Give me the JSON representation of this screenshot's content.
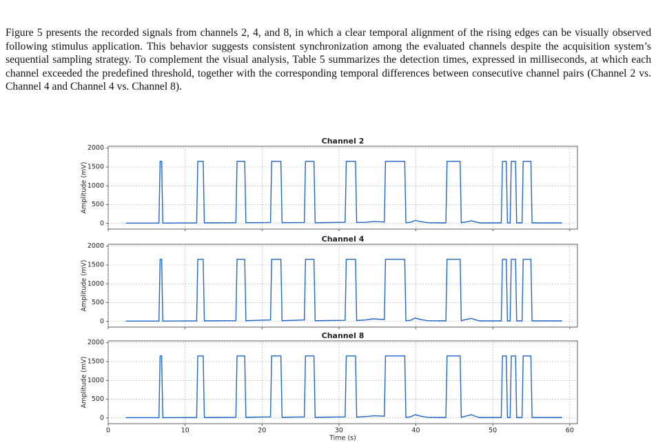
{
  "paragraph": "Figure 5 presents the recorded signals from channels 2, 4, and 8, in which a clear temporal alignment of the rising edges can be visually observed following stimulus application. This behavior suggests consistent synchronization among the evaluated channels despite the acquisition system’s sequential sampling strategy. To complement the visual analysis, Table 5 summarizes the detection times, expressed in milliseconds, at which each channel exceeded the predefined threshold, together with the corresponding temporal differences between consecutive channel pairs (Channel 2 vs. Channel 4 and Channel 4 vs. Channel 8).",
  "figure": {
    "charts": [
      {
        "type": "line",
        "title": "Channel 2",
        "ylabel": "Amplitude (mV)",
        "color": "#1f66c9",
        "grid": true,
        "xlim": [
          0,
          61
        ],
        "ylim": [
          -150,
          2050
        ],
        "xticks": [
          0,
          10,
          20,
          30,
          40,
          50,
          60
        ],
        "yticks": [
          0,
          500,
          1000,
          1500,
          2000
        ],
        "x": [
          2.3,
          6.6,
          6.75,
          6.95,
          7.1,
          11.5,
          11.65,
          12.35,
          12.5,
          16.6,
          16.75,
          17.75,
          17.9,
          21.1,
          21.25,
          22.45,
          22.6,
          25.5,
          25.65,
          26.75,
          26.9,
          30.8,
          30.95,
          32.15,
          32.3,
          33.5,
          34.5,
          35.9,
          36.05,
          38.55,
          38.7,
          39.3,
          39.9,
          40.6,
          41.5,
          43.9,
          44.05,
          45.75,
          45.9,
          46.5,
          47.2,
          47.8,
          48.3,
          51.1,
          51.25,
          51.75,
          51.9,
          52.25,
          52.4,
          52.95,
          53.1,
          53.8,
          53.95,
          54.95,
          55.1,
          59
        ],
        "values": [
          10,
          10,
          1650,
          1650,
          10,
          15,
          1650,
          1650,
          15,
          20,
          1650,
          1650,
          20,
          25,
          1650,
          1650,
          20,
          25,
          1650,
          1650,
          20,
          30,
          1650,
          1650,
          25,
          30,
          50,
          40,
          1650,
          1650,
          20,
          30,
          80,
          50,
          20,
          15,
          1650,
          1650,
          20,
          40,
          70,
          40,
          15,
          15,
          1650,
          1650,
          15,
          15,
          1650,
          1650,
          15,
          15,
          1650,
          1650,
          15,
          15
        ]
      },
      {
        "type": "line",
        "title": "Channel 4",
        "ylabel": "Amplitude (mV)",
        "color": "#1f66c9",
        "grid": true,
        "xlim": [
          0,
          61
        ],
        "ylim": [
          -150,
          2050
        ],
        "xticks": [
          0,
          10,
          20,
          30,
          40,
          50,
          60
        ],
        "yticks": [
          0,
          500,
          1000,
          1500,
          2000
        ],
        "x": [
          2.3,
          6.6,
          6.75,
          6.95,
          7.1,
          11.5,
          11.65,
          12.35,
          12.5,
          16.6,
          16.75,
          17.75,
          17.9,
          21.1,
          21.25,
          22.45,
          22.6,
          25.5,
          25.65,
          26.75,
          26.9,
          30.8,
          30.95,
          32.15,
          32.3,
          33.5,
          34.5,
          35.9,
          36.05,
          38.55,
          38.7,
          39.3,
          39.9,
          40.6,
          41.5,
          43.9,
          44.05,
          45.75,
          45.9,
          46.5,
          47.2,
          47.8,
          48.3,
          51.1,
          51.25,
          51.75,
          51.9,
          52.25,
          52.4,
          52.95,
          53.1,
          53.8,
          53.95,
          54.95,
          55.1,
          59
        ],
        "values": [
          10,
          10,
          1650,
          1650,
          10,
          15,
          1650,
          1650,
          15,
          20,
          1650,
          1650,
          20,
          40,
          1650,
          1650,
          20,
          40,
          1650,
          1650,
          20,
          30,
          1650,
          1650,
          25,
          40,
          70,
          50,
          1650,
          1650,
          20,
          30,
          90,
          50,
          20,
          15,
          1650,
          1650,
          20,
          50,
          80,
          40,
          15,
          15,
          1650,
          1650,
          15,
          15,
          1650,
          1650,
          15,
          15,
          1650,
          1650,
          15,
          15
        ]
      },
      {
        "type": "line",
        "title": "Channel 8",
        "ylabel": "Amplitude (mV)",
        "xlabel": "Time (s)",
        "color": "#1f66c9",
        "grid": true,
        "xlim": [
          0,
          61
        ],
        "ylim": [
          -150,
          2050
        ],
        "xticks": [
          0,
          10,
          20,
          30,
          40,
          50,
          60
        ],
        "yticks": [
          0,
          500,
          1000,
          1500,
          2000
        ],
        "x": [
          2.3,
          6.6,
          6.75,
          6.95,
          7.1,
          11.5,
          11.65,
          12.35,
          12.5,
          16.6,
          16.75,
          17.75,
          17.9,
          21.1,
          21.25,
          22.45,
          22.6,
          25.5,
          25.65,
          26.75,
          26.9,
          30.8,
          30.95,
          32.15,
          32.3,
          33.5,
          34.5,
          35.9,
          36.05,
          38.55,
          38.7,
          39.3,
          39.9,
          40.6,
          41.5,
          43.9,
          44.05,
          45.75,
          45.9,
          46.5,
          47.2,
          47.8,
          48.3,
          51.1,
          51.25,
          51.75,
          51.9,
          52.25,
          52.4,
          52.95,
          53.1,
          53.8,
          53.95,
          54.95,
          55.1,
          59
        ],
        "values": [
          10,
          10,
          1650,
          1650,
          10,
          15,
          1650,
          1650,
          15,
          20,
          1650,
          1650,
          20,
          30,
          1650,
          1650,
          20,
          30,
          1650,
          1650,
          20,
          30,
          1650,
          1650,
          25,
          40,
          60,
          50,
          1650,
          1650,
          20,
          30,
          90,
          50,
          20,
          15,
          1650,
          1650,
          20,
          50,
          90,
          40,
          15,
          15,
          1650,
          1650,
          15,
          15,
          1650,
          1650,
          15,
          15,
          1650,
          1650,
          15,
          15
        ]
      }
    ]
  }
}
